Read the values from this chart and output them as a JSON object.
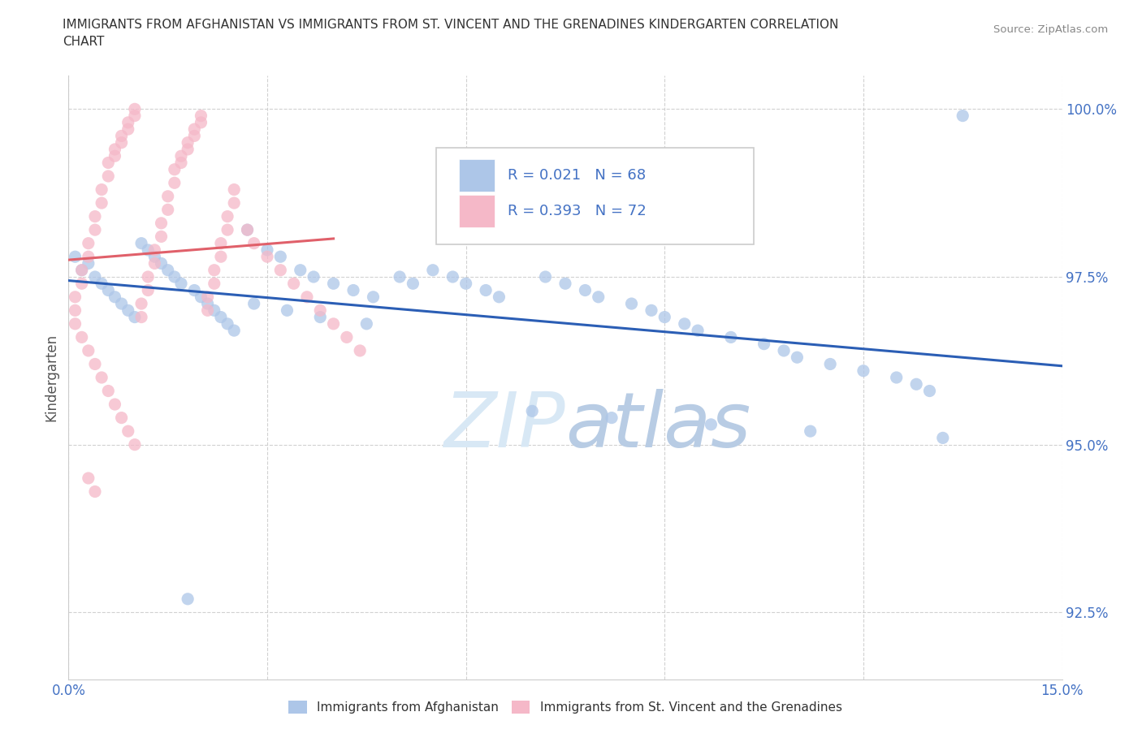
{
  "title_line1": "IMMIGRANTS FROM AFGHANISTAN VS IMMIGRANTS FROM ST. VINCENT AND THE GRENADINES KINDERGARTEN CORRELATION",
  "title_line2": "CHART",
  "source_text": "Source: ZipAtlas.com",
  "ylabel": "Kindergarten",
  "background_color": "#ffffff",
  "afghanistan_color": "#adc6e8",
  "stvincent_color": "#f5b8c8",
  "afghanistan_line_color": "#2b5eb5",
  "stvincent_line_color": "#e0606a",
  "watermark_color": "#d0dff0",
  "legend_text_color": "#4472c4",
  "axis_label_color": "#4472c4",
  "R_afghanistan": 0.021,
  "N_afghanistan": 68,
  "R_stvincent": 0.393,
  "N_stvincent": 72,
  "xlim": [
    0.0,
    0.15
  ],
  "ylim": [
    0.915,
    1.005
  ],
  "yticks": [
    0.925,
    0.95,
    0.975,
    1.0
  ],
  "yticklabels": [
    "92.5%",
    "95.0%",
    "97.5%",
    "100.0%"
  ]
}
